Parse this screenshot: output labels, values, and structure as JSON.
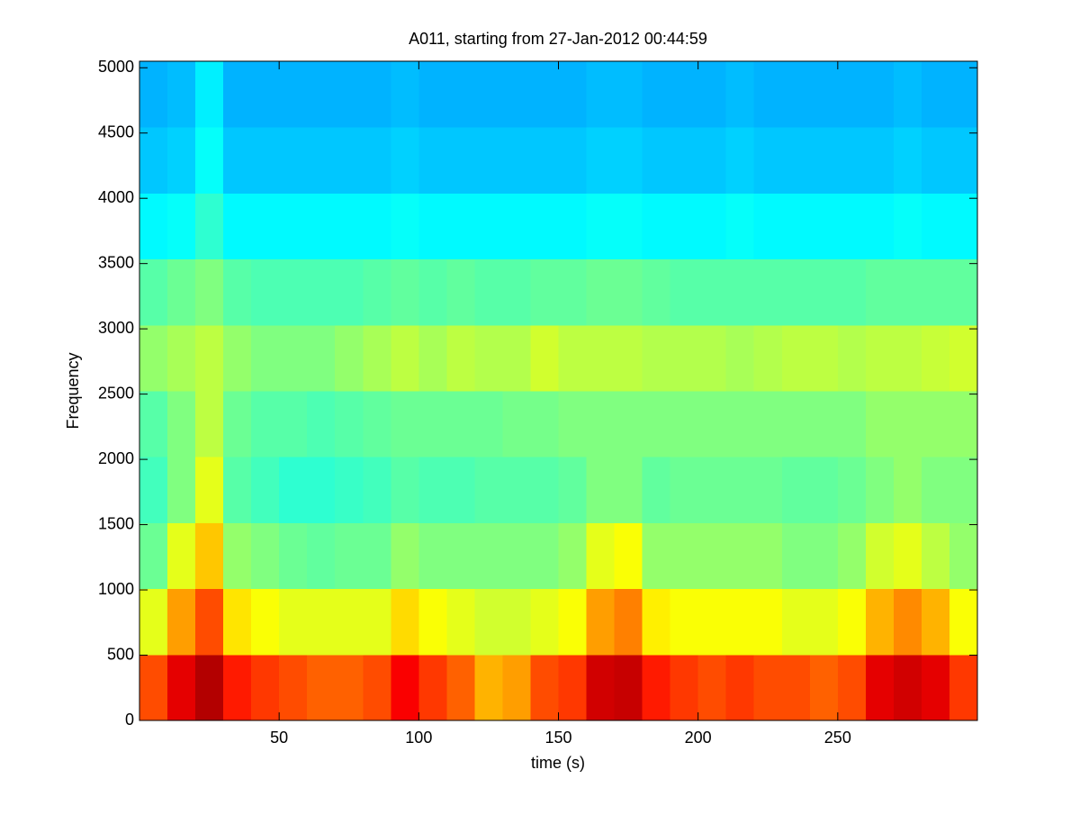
{
  "chart_data": {
    "type": "heatmap",
    "title": "A011, starting from 27-Jan-2012 00:44:59",
    "xlabel": "time (s)",
    "ylabel": "Frequency",
    "colormap": "jet",
    "zlim": [
      0,
      1
    ],
    "xlim": [
      0,
      300
    ],
    "ylim": [
      0,
      5050
    ],
    "xticks": [
      50,
      100,
      150,
      200,
      250
    ],
    "yticks": [
      0,
      500,
      1000,
      1500,
      2000,
      2500,
      3000,
      3500,
      4000,
      4500,
      5000
    ],
    "x_bins": [
      0,
      10,
      20,
      30,
      40,
      50,
      60,
      70,
      80,
      90,
      100,
      110,
      120,
      130,
      140,
      150,
      160,
      170,
      180,
      190,
      200,
      210,
      220,
      230,
      240,
      250,
      260,
      270,
      280,
      290,
      300
    ],
    "y_bins": [
      0,
      505,
      1010,
      1515,
      2020,
      2525,
      3030,
      3535,
      4040,
      4545,
      5050
    ],
    "z": [
      [
        0.8,
        0.9,
        0.95,
        0.85,
        0.82,
        0.8,
        0.78,
        0.78,
        0.8,
        0.88,
        0.82,
        0.78,
        0.7,
        0.72,
        0.8,
        0.82,
        0.92,
        0.93,
        0.85,
        0.82,
        0.8,
        0.82,
        0.8,
        0.8,
        0.78,
        0.8,
        0.9,
        0.92,
        0.9,
        0.82
      ],
      [
        0.6,
        0.72,
        0.8,
        0.65,
        0.62,
        0.6,
        0.6,
        0.6,
        0.6,
        0.66,
        0.62,
        0.6,
        0.58,
        0.58,
        0.6,
        0.62,
        0.72,
        0.75,
        0.64,
        0.62,
        0.62,
        0.62,
        0.62,
        0.6,
        0.6,
        0.62,
        0.7,
        0.74,
        0.7,
        0.62
      ],
      [
        0.48,
        0.6,
        0.68,
        0.52,
        0.5,
        0.48,
        0.47,
        0.48,
        0.48,
        0.52,
        0.5,
        0.5,
        0.5,
        0.5,
        0.5,
        0.52,
        0.6,
        0.62,
        0.52,
        0.52,
        0.52,
        0.52,
        0.52,
        0.5,
        0.5,
        0.52,
        0.58,
        0.6,
        0.56,
        0.52
      ],
      [
        0.44,
        0.5,
        0.6,
        0.46,
        0.44,
        0.42,
        0.42,
        0.43,
        0.44,
        0.46,
        0.45,
        0.45,
        0.46,
        0.46,
        0.46,
        0.47,
        0.5,
        0.5,
        0.47,
        0.48,
        0.48,
        0.48,
        0.48,
        0.47,
        0.47,
        0.48,
        0.5,
        0.52,
        0.5,
        0.5
      ],
      [
        0.46,
        0.5,
        0.56,
        0.48,
        0.46,
        0.46,
        0.45,
        0.46,
        0.47,
        0.48,
        0.48,
        0.48,
        0.48,
        0.49,
        0.49,
        0.5,
        0.5,
        0.5,
        0.5,
        0.5,
        0.5,
        0.5,
        0.5,
        0.5,
        0.5,
        0.5,
        0.52,
        0.52,
        0.52,
        0.52
      ],
      [
        0.52,
        0.54,
        0.56,
        0.52,
        0.5,
        0.5,
        0.5,
        0.52,
        0.54,
        0.56,
        0.54,
        0.56,
        0.55,
        0.55,
        0.58,
        0.56,
        0.56,
        0.56,
        0.55,
        0.55,
        0.55,
        0.54,
        0.55,
        0.56,
        0.56,
        0.55,
        0.56,
        0.56,
        0.57,
        0.58
      ],
      [
        0.46,
        0.48,
        0.5,
        0.46,
        0.45,
        0.45,
        0.45,
        0.45,
        0.46,
        0.47,
        0.46,
        0.47,
        0.46,
        0.46,
        0.47,
        0.47,
        0.48,
        0.48,
        0.47,
        0.46,
        0.46,
        0.46,
        0.46,
        0.46,
        0.46,
        0.46,
        0.47,
        0.47,
        0.47,
        0.47
      ],
      [
        0.37,
        0.38,
        0.42,
        0.37,
        0.37,
        0.37,
        0.37,
        0.37,
        0.37,
        0.38,
        0.37,
        0.37,
        0.37,
        0.37,
        0.37,
        0.37,
        0.38,
        0.38,
        0.37,
        0.37,
        0.37,
        0.38,
        0.37,
        0.37,
        0.37,
        0.37,
        0.37,
        0.38,
        0.37,
        0.37
      ],
      [
        0.32,
        0.33,
        0.38,
        0.32,
        0.32,
        0.32,
        0.32,
        0.32,
        0.32,
        0.33,
        0.32,
        0.32,
        0.32,
        0.32,
        0.32,
        0.32,
        0.33,
        0.33,
        0.32,
        0.32,
        0.32,
        0.33,
        0.32,
        0.32,
        0.32,
        0.32,
        0.32,
        0.33,
        0.32,
        0.32
      ],
      [
        0.3,
        0.31,
        0.36,
        0.3,
        0.3,
        0.3,
        0.3,
        0.3,
        0.3,
        0.31,
        0.3,
        0.3,
        0.3,
        0.3,
        0.3,
        0.3,
        0.31,
        0.31,
        0.3,
        0.3,
        0.3,
        0.31,
        0.3,
        0.3,
        0.3,
        0.3,
        0.3,
        0.31,
        0.3,
        0.3
      ]
    ]
  }
}
